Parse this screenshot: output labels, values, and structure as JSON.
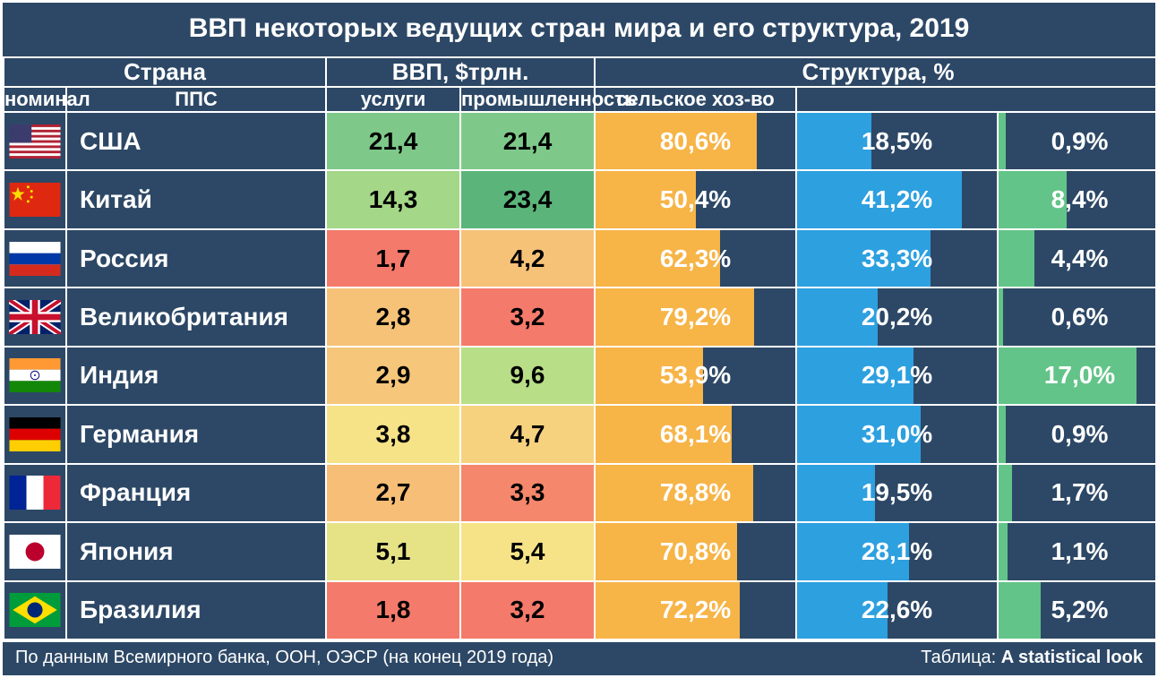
{
  "title": "ВВП некоторых ведущих стран мира и его структура, 2019",
  "colors": {
    "background": "#2d4866",
    "border": "#ffffff",
    "services_bar": "#f7b447",
    "industry_bar": "#2da0e0",
    "agriculture_bar": "#62c488"
  },
  "headers": {
    "country": "Страна",
    "gdp": "ВВП, $трлн.",
    "structure": "Структура, %",
    "nominal": "номинал",
    "ppp": "ППС",
    "services": "услуги",
    "industry": "промышленность",
    "agriculture": "сельское хоз-во"
  },
  "heat_palette": {
    "comment": "GDP cells are heat-mapped: low→red, mid→yellow, high→green",
    "stops": [
      "#f47a6b",
      "#f7b36e",
      "#f6e387",
      "#b8de87",
      "#7ec98a",
      "#5bb57a"
    ]
  },
  "rows": [
    {
      "flag_key": "us",
      "name": "США",
      "nominal": "21,4",
      "nominal_color": "#7ec98a",
      "ppp": "21,4",
      "ppp_color": "#7ec98a",
      "services": "80,6%",
      "services_pct": 80.6,
      "industry": "18,5%",
      "industry_pct": 18.5,
      "agriculture": "0,9%",
      "agriculture_pct": 0.9
    },
    {
      "flag_key": "cn",
      "name": "Китай",
      "nominal": "14,3",
      "nominal_color": "#a4d787",
      "ppp": "23,4",
      "ppp_color": "#5bb57a",
      "services": "50,4%",
      "services_pct": 50.4,
      "industry": "41,2%",
      "industry_pct": 41.2,
      "agriculture": "8,4%",
      "agriculture_pct": 8.4
    },
    {
      "flag_key": "ru",
      "name": "Россия",
      "nominal": "1,7",
      "nominal_color": "#f47a6b",
      "ppp": "4,2",
      "ppp_color": "#f6c278",
      "services": "62,3%",
      "services_pct": 62.3,
      "industry": "33,3%",
      "industry_pct": 33.3,
      "agriculture": "4,4%",
      "agriculture_pct": 4.4
    },
    {
      "flag_key": "gb",
      "name": "Великобритания",
      "nominal": "2,8",
      "nominal_color": "#f6c278",
      "ppp": "3,2",
      "ppp_color": "#f47a6b",
      "services": "79,2%",
      "services_pct": 79.2,
      "industry": "20,2%",
      "industry_pct": 20.2,
      "agriculture": "0,6%",
      "agriculture_pct": 0.6
    },
    {
      "flag_key": "in",
      "name": "Индия",
      "nominal": "2,9",
      "nominal_color": "#f6c67b",
      "ppp": "9,6",
      "ppp_color": "#b8de87",
      "services": "53,9%",
      "services_pct": 53.9,
      "industry": "29,1%",
      "industry_pct": 29.1,
      "agriculture": "17,0%",
      "agriculture_pct": 17.0
    },
    {
      "flag_key": "de",
      "name": "Германия",
      "nominal": "3,8",
      "nominal_color": "#f6e387",
      "ppp": "4,7",
      "ppp_color": "#f6d27f",
      "services": "68,1%",
      "services_pct": 68.1,
      "industry": "31,0%",
      "industry_pct": 31.0,
      "agriculture": "0,9%",
      "agriculture_pct": 0.9
    },
    {
      "flag_key": "fr",
      "name": "Франция",
      "nominal": "2,7",
      "nominal_color": "#f6be76",
      "ppp": "3,3",
      "ppp_color": "#f5876c",
      "services": "78,8%",
      "services_pct": 78.8,
      "industry": "19,5%",
      "industry_pct": 19.5,
      "agriculture": "1,7%",
      "agriculture_pct": 1.7
    },
    {
      "flag_key": "jp",
      "name": "Япония",
      "nominal": "5,1",
      "nominal_color": "#e6e387",
      "ppp": "5,4",
      "ppp_color": "#f6e387",
      "services": "70,8%",
      "services_pct": 70.8,
      "industry": "28,1%",
      "industry_pct": 28.1,
      "agriculture": "1,1%",
      "agriculture_pct": 1.1
    },
    {
      "flag_key": "br",
      "name": "Бразилия",
      "nominal": "1,8",
      "nominal_color": "#f47a6b",
      "ppp": "3,2",
      "ppp_color": "#f47a6b",
      "services": "72,2%",
      "services_pct": 72.2,
      "industry": "22,6%",
      "industry_pct": 22.6,
      "agriculture": "5,2%",
      "agriculture_pct": 5.2
    }
  ],
  "footer": {
    "source": "По данным Всемирного банка, ООН, ОЭСР (на конец 2019 года)",
    "credit_label": "Таблица:",
    "credit_name": "A statistical look"
  },
  "structure_max": {
    "services": 100,
    "industry": 50,
    "agriculture": 20
  }
}
